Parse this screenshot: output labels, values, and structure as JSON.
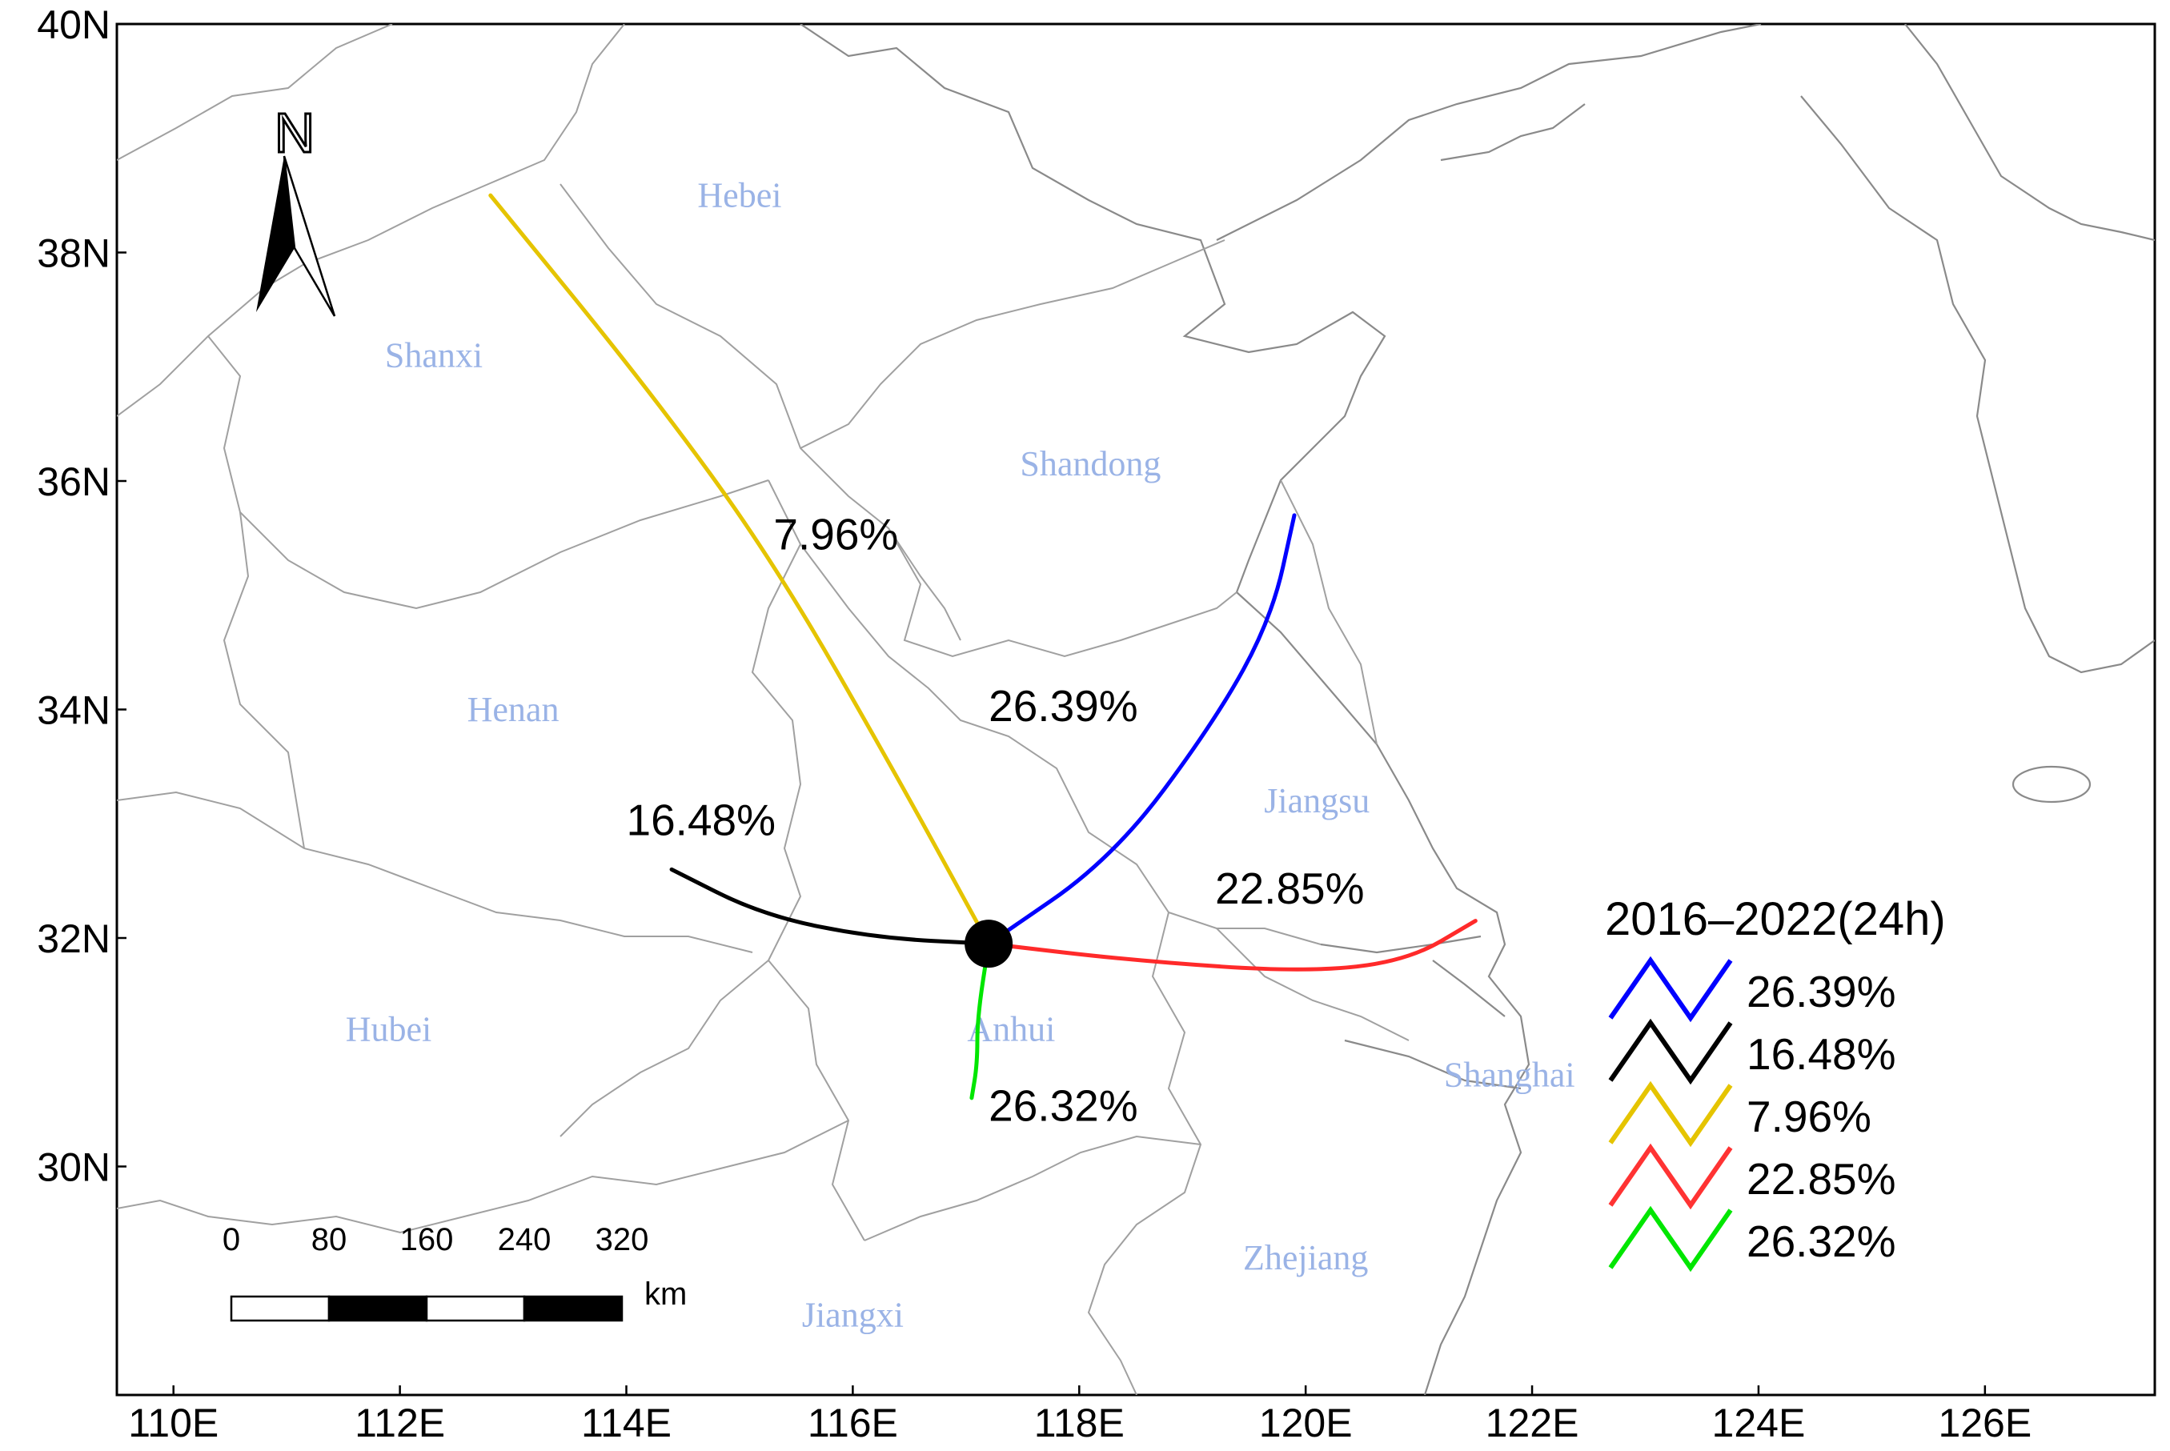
{
  "map": {
    "x_ticks": [
      "110E",
      "112E",
      "114E",
      "116E",
      "118E",
      "120E",
      "122E",
      "124E",
      "126E"
    ],
    "y_ticks": [
      "30N",
      "32N",
      "34N",
      "36N",
      "38N",
      "40N"
    ],
    "x_range": [
      109.5,
      127.5
    ],
    "y_range": [
      28.0,
      40.0
    ],
    "north_arrow_label": "N",
    "provinces": [
      {
        "name": "Hebei",
        "lon": 115.0,
        "lat": 38.4
      },
      {
        "name": "Shanxi",
        "lon": 112.3,
        "lat": 37.0
      },
      {
        "name": "Shandong",
        "lon": 118.1,
        "lat": 36.05
      },
      {
        "name": "Henan",
        "lon": 113.0,
        "lat": 33.9
      },
      {
        "name": "Jiangsu",
        "lon": 120.1,
        "lat": 33.1
      },
      {
        "name": "Hubei",
        "lon": 111.9,
        "lat": 31.1
      },
      {
        "name": "Anhui",
        "lon": 117.4,
        "lat": 31.1
      },
      {
        "name": "Shanghai",
        "lon": 121.8,
        "lat": 30.7
      },
      {
        "name": "Zhejiang",
        "lon": 120.0,
        "lat": 29.1
      },
      {
        "name": "Jiangxi",
        "lon": 116.0,
        "lat": 28.6
      }
    ],
    "origin": {
      "lon": 117.2,
      "lat": 31.95
    },
    "trajectories": [
      {
        "label": "26.39%",
        "color": "#0000ff",
        "label_lon": 117.2,
        "label_lat": 33.9,
        "path": [
          [
            117.2,
            31.95
          ],
          [
            118.3,
            32.7
          ],
          [
            119.2,
            33.9
          ],
          [
            119.7,
            34.8
          ],
          [
            119.9,
            35.7
          ]
        ]
      },
      {
        "label": "16.48%",
        "color": "#000000",
        "label_lon": 114.0,
        "label_lat": 32.9,
        "path": [
          [
            117.2,
            31.95
          ],
          [
            116.2,
            32.0
          ],
          [
            115.2,
            32.2
          ],
          [
            114.4,
            32.6
          ]
        ]
      },
      {
        "label": "7.96%",
        "color": "#e5c400",
        "label_lon": 115.3,
        "label_lat": 35.4,
        "path": [
          [
            117.2,
            31.95
          ],
          [
            116.4,
            33.4
          ],
          [
            115.3,
            35.3
          ],
          [
            114.2,
            36.8
          ],
          [
            112.8,
            38.5
          ]
        ]
      },
      {
        "label": "22.85%",
        "color": "#ff2a2a",
        "label_lon": 119.2,
        "label_lat": 32.3,
        "path": [
          [
            117.2,
            31.95
          ],
          [
            118.5,
            31.8
          ],
          [
            120.0,
            31.7
          ],
          [
            120.9,
            31.8
          ],
          [
            121.5,
            32.15
          ]
        ]
      },
      {
        "label": "26.32%",
        "color": "#00e600",
        "label_lon": 117.2,
        "label_lat": 30.4,
        "path": [
          [
            117.2,
            31.95
          ],
          [
            117.1,
            31.3
          ],
          [
            117.1,
            30.9
          ],
          [
            117.05,
            30.6
          ]
        ]
      }
    ]
  },
  "legend": {
    "title": "2016–2022(24h)",
    "items": [
      {
        "label": "26.39%",
        "color": "#0000ff"
      },
      {
        "label": "16.48%",
        "color": "#000000"
      },
      {
        "label": "7.96%",
        "color": "#e5c400"
      },
      {
        "label": "22.85%",
        "color": "#ff3333"
      },
      {
        "label": "26.32%",
        "color": "#00e600"
      }
    ]
  },
  "scale_bar": {
    "ticks": [
      "0",
      "80",
      "160",
      "240",
      "320"
    ],
    "unit": "km"
  }
}
